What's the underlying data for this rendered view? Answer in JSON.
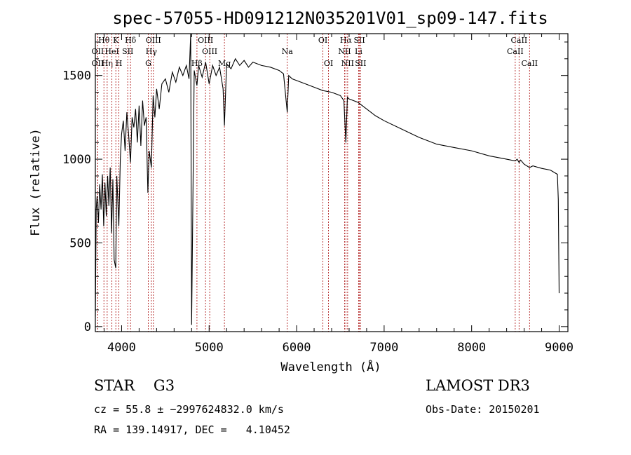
{
  "chart_data": {
    "type": "line",
    "title": "spec-57055-HD091212N035201V01_sp09-147.fits",
    "xlabel": "Wavelength (Å)",
    "ylabel": "Flux (relative)",
    "xlim": [
      3700,
      9100
    ],
    "ylim": [
      -30,
      1750
    ],
    "xticks": [
      4000,
      5000,
      6000,
      7000,
      8000,
      9000
    ],
    "yticks": [
      0,
      500,
      1000,
      1500
    ],
    "series": [
      {
        "name": "flux",
        "x": [
          3700,
          3710,
          3720,
          3735,
          3750,
          3765,
          3780,
          3795,
          3810,
          3825,
          3840,
          3855,
          3870,
          3885,
          3900,
          3915,
          3933,
          3945,
          3968,
          3985,
          4000,
          4020,
          4040,
          4060,
          4080,
          4101,
          4120,
          4140,
          4160,
          4180,
          4200,
          4220,
          4240,
          4260,
          4280,
          4300,
          4315,
          4340,
          4360,
          4380,
          4400,
          4430,
          4460,
          4500,
          4540,
          4580,
          4620,
          4660,
          4700,
          4740,
          4770,
          4790,
          4800,
          4830,
          4861,
          4880,
          4920,
          4960,
          5000,
          5040,
          5080,
          5120,
          5160,
          5175,
          5200,
          5250,
          5300,
          5350,
          5400,
          5450,
          5500,
          5600,
          5700,
          5800,
          5850,
          5893,
          5910,
          5950,
          6000,
          6100,
          6200,
          6300,
          6400,
          6500,
          6540,
          6563,
          6580,
          6600,
          6650,
          6700,
          6800,
          6900,
          7000,
          7200,
          7400,
          7600,
          7800,
          8000,
          8200,
          8400,
          8498,
          8520,
          8542,
          8560,
          8600,
          8662,
          8700,
          8800,
          8900,
          8980,
          8990,
          9000
        ],
        "y": [
          60,
          700,
          780,
          620,
          850,
          700,
          910,
          600,
          860,
          660,
          900,
          720,
          950,
          560,
          880,
          400,
          350,
          900,
          600,
          1000,
          1150,
          1230,
          1050,
          1280,
          1150,
          980,
          1250,
          1190,
          1300,
          1100,
          1320,
          1080,
          1350,
          1200,
          1250,
          800,
          1050,
          950,
          1380,
          1250,
          1420,
          1300,
          1450,
          1480,
          1400,
          1520,
          1460,
          1550,
          1500,
          1560,
          1480,
          1750,
          10,
          1530,
          1440,
          1560,
          1490,
          1580,
          1450,
          1560,
          1500,
          1550,
          1420,
          1200,
          1570,
          1540,
          1600,
          1560,
          1590,
          1550,
          1580,
          1560,
          1550,
          1530,
          1510,
          1280,
          1500,
          1480,
          1470,
          1450,
          1430,
          1410,
          1400,
          1380,
          1350,
          1100,
          1370,
          1360,
          1350,
          1340,
          1300,
          1260,
          1230,
          1180,
          1130,
          1090,
          1070,
          1050,
          1020,
          1000,
          990,
          1000,
          980,
          995,
          970,
          950,
          960,
          945,
          935,
          910,
          760,
          200
        ]
      }
    ],
    "spectral_lines": [
      {
        "label": "Hθ",
        "wavelength": 3798,
        "row": 0
      },
      {
        "label": "OII",
        "wavelength": 3727,
        "row": 1
      },
      {
        "label": "OII",
        "wavelength": 3727,
        "row": 2
      },
      {
        "label": "Hη",
        "wavelength": 3835,
        "row": 2
      },
      {
        "label": "HeI",
        "wavelength": 3889,
        "row": 1
      },
      {
        "label": "K",
        "wavelength": 3934,
        "row": 0
      },
      {
        "label": "H",
        "wavelength": 3969,
        "row": 2
      },
      {
        "label": "SII",
        "wavelength": 4070,
        "row": 1
      },
      {
        "label": "Hδ",
        "wavelength": 4102,
        "row": 0
      },
      {
        "label": "Hγ",
        "wavelength": 4340,
        "row": 1
      },
      {
        "label": "G",
        "wavelength": 4305,
        "row": 2
      },
      {
        "label": "OIII",
        "wavelength": 4363,
        "row": 0
      },
      {
        "label": "Hβ",
        "wavelength": 4861,
        "row": 2
      },
      {
        "label": "OIII",
        "wavelength": 4959,
        "row": 0
      },
      {
        "label": "OIII",
        "wavelength": 5007,
        "row": 1
      },
      {
        "label": "Mg",
        "wavelength": 5175,
        "row": 2
      },
      {
        "label": "Na",
        "wavelength": 5893,
        "row": 1
      },
      {
        "label": "OI",
        "wavelength": 6300,
        "row": 0
      },
      {
        "label": "OI",
        "wavelength": 6364,
        "row": 2
      },
      {
        "label": "Hα",
        "wavelength": 6563,
        "row": 0
      },
      {
        "label": "NII",
        "wavelength": 6548,
        "row": 1
      },
      {
        "label": "NII",
        "wavelength": 6583,
        "row": 2
      },
      {
        "label": "SII",
        "wavelength": 6717,
        "row": 0
      },
      {
        "label": "Li",
        "wavelength": 6708,
        "row": 1
      },
      {
        "label": "SII",
        "wavelength": 6731,
        "row": 2
      },
      {
        "label": "CaII",
        "wavelength": 8542,
        "row": 0
      },
      {
        "label": "CaII",
        "wavelength": 8498,
        "row": 1
      },
      {
        "label": "CaII",
        "wavelength": 8662,
        "row": 2
      }
    ]
  },
  "info": {
    "object": "STAR    G3",
    "survey": "LAMOST DR3",
    "cz": "cz = 55.8 ± −2997624832.0 km/s",
    "obs_date": "Obs-Date: 20150201",
    "radec": "RA = 139.14917, DEC =   4.10452"
  },
  "colors": {
    "line_marker": "#b22222",
    "spectrum": "#000000",
    "axes": "#000000"
  }
}
